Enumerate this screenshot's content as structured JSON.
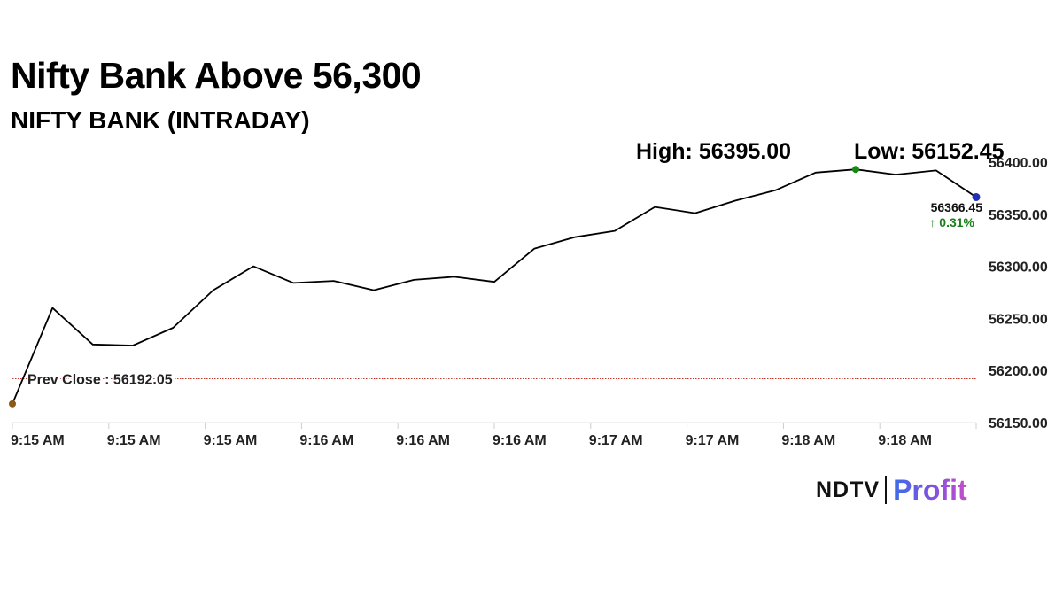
{
  "headline": "Nifty Bank Above 56,300",
  "chart_data": {
    "type": "line",
    "title": "NIFTY BANK (INTRADAY)",
    "high_label": "High: 56395.00",
    "low_label": "Low: 56152.45",
    "last_value_label": "56366.45",
    "change_label": "↑ 0.31%",
    "prev_close_label": "Prev Close : 56192.05",
    "prev_close": 56192.05,
    "x_tick_labels": [
      "9:15 AM",
      "9:15 AM",
      "9:15 AM",
      "9:16 AM",
      "9:16 AM",
      "9:16 AM",
      "9:17 AM",
      "9:17 AM",
      "9:18 AM",
      "9:18 AM"
    ],
    "y_tick_labels": [
      "56400.00",
      "56350.00",
      "56300.00",
      "56250.00",
      "56200.00",
      "56150.00"
    ],
    "y_ticks": [
      56400,
      56350,
      56300,
      56250,
      56200,
      56150
    ],
    "ylim": [
      56150,
      56400
    ],
    "series": [
      {
        "values": [
          56168,
          56260,
          56225,
          56224,
          56241,
          56277,
          56300,
          56284,
          56286,
          56277,
          56287,
          56290,
          56285,
          56317,
          56328,
          56334,
          56357,
          56351,
          56363,
          56373,
          56390,
          56393,
          56388,
          56392,
          56366.45
        ]
      }
    ],
    "colors": {
      "line": "#000000",
      "prev_close_line": "#c0392b",
      "start_marker": "#8b5a14",
      "high_marker": "#148a14",
      "last_marker": "#1f2fb8",
      "change_text": "#1a7f1a",
      "grid": "#e3e3e3"
    },
    "grid": true
  },
  "logo": {
    "part1": "NDTV",
    "part2": "Profit"
  }
}
